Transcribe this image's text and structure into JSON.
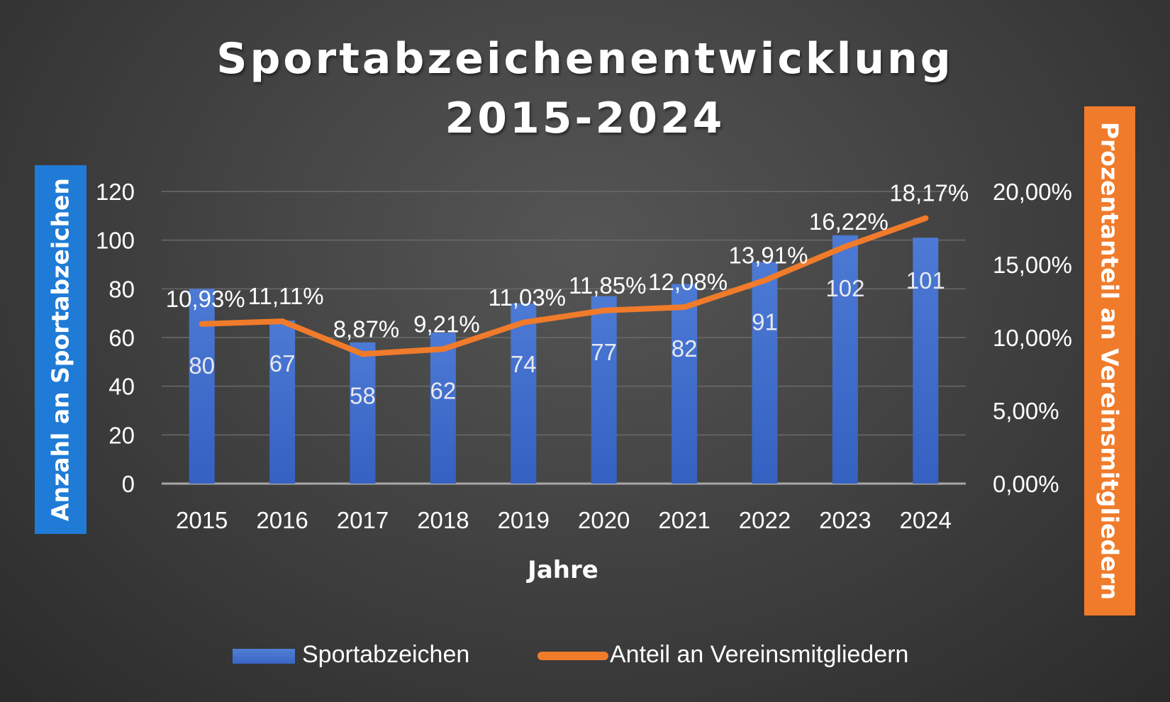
{
  "title_line1": "Sportabzeichenentwicklung",
  "title_line2": "2015-2024",
  "left_axis_title": "Anzahl an Sportabzeichen",
  "right_axis_title": "Prozentanteil an Vereinsmitgliedern",
  "legend": {
    "bar_label": "Sportabzeichen",
    "line_label": "Anteil an Vereinsmitgliedern"
  },
  "colors": {
    "bar": "#3d6bc9",
    "line": "#f07b2b",
    "left_axis_box": "#1f7bd6",
    "right_axis_box": "#f07b2b",
    "gridline": "#6a6a6a",
    "text": "#ffffff"
  },
  "chart_data": {
    "type": "bar",
    "title": "Sportabzeichenentwicklung 2015-2024",
    "xlabel": "Jahre",
    "ylabel": "Anzahl an Sportabzeichen",
    "y2label": "Prozentanteil an Vereinsmitgliedern",
    "categories": [
      "2015",
      "2016",
      "2017",
      "2018",
      "2019",
      "2020",
      "2021",
      "2022",
      "2023",
      "2024"
    ],
    "ylim": [
      0,
      120
    ],
    "yticks": [
      "0",
      "20",
      "40",
      "60",
      "80",
      "100",
      "120"
    ],
    "y2lim": [
      0,
      20
    ],
    "y2ticks": [
      "0,00%",
      "5,00%",
      "10,00%",
      "15,00%",
      "20,00%"
    ],
    "legend_position": "bottom",
    "grid": true,
    "series": [
      {
        "name": "Sportabzeichen",
        "type": "bar",
        "axis": "left",
        "values": [
          80,
          67,
          58,
          62,
          74,
          77,
          82,
          91,
          102,
          101
        ],
        "labels": [
          "80",
          "67",
          "58",
          "62",
          "74",
          "77",
          "82",
          "91",
          "102",
          "101"
        ]
      },
      {
        "name": "Anteil an Vereinsmitgliedern",
        "type": "line",
        "axis": "right",
        "values": [
          10.93,
          11.11,
          8.87,
          9.21,
          11.03,
          11.85,
          12.08,
          13.91,
          16.22,
          18.17
        ],
        "labels": [
          "10,93%",
          "11,11%",
          "8,87%",
          "9,21%",
          "11,03%",
          "11,85%",
          "12,08%",
          "13,91%",
          "16,22%",
          "18,17%"
        ]
      }
    ]
  }
}
